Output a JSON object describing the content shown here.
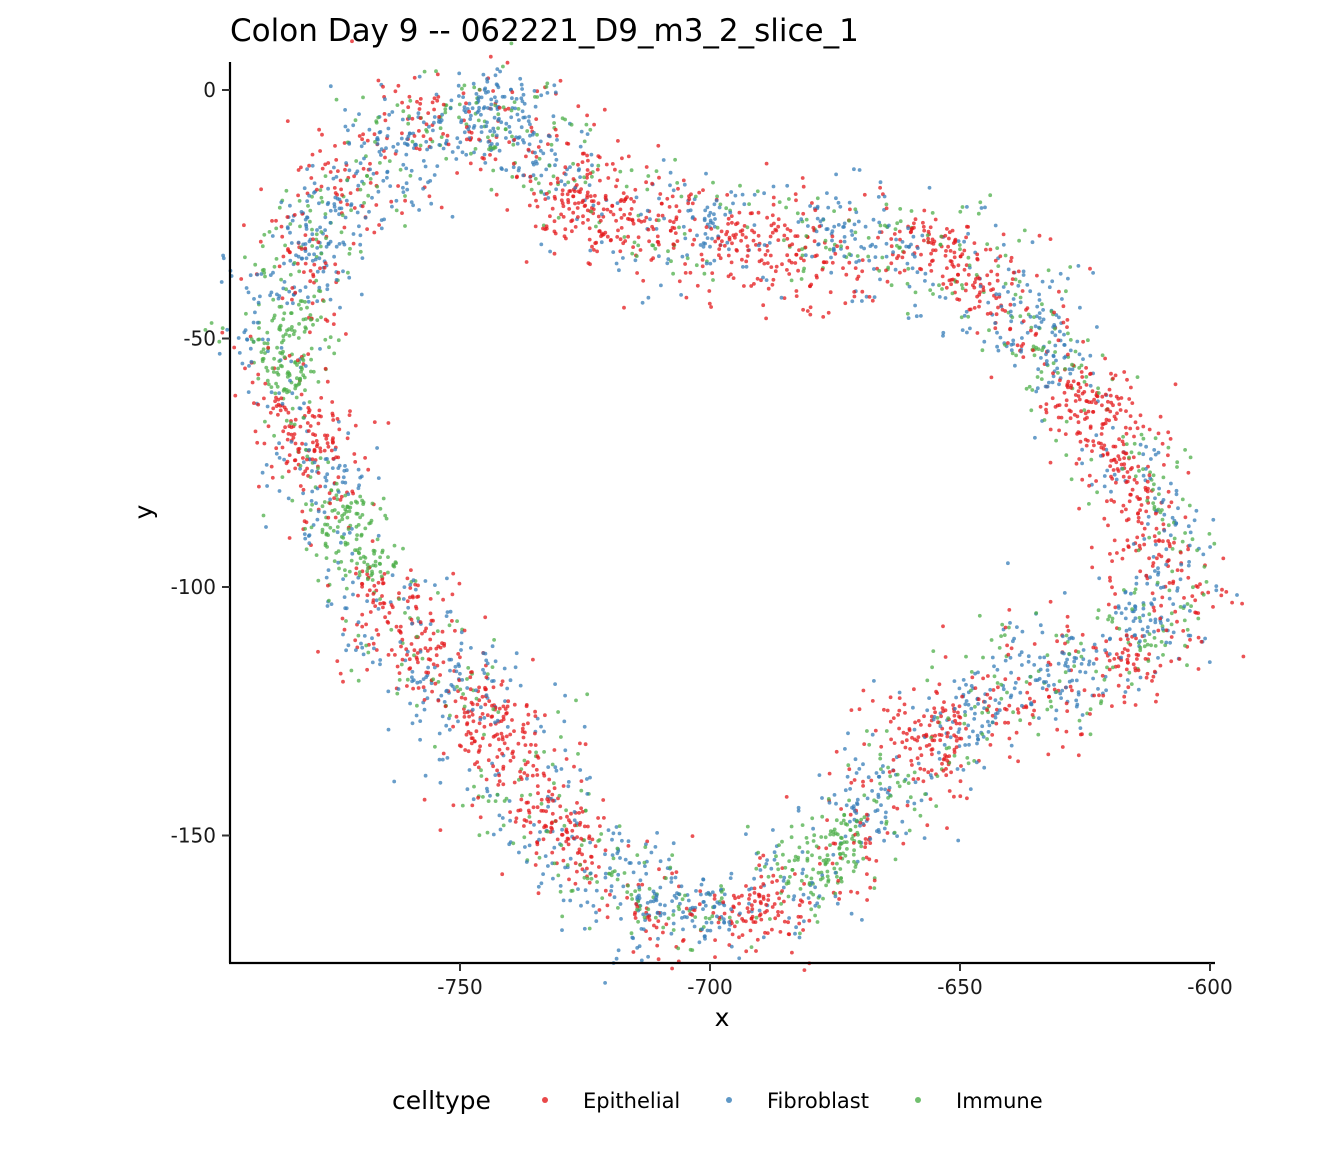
{
  "chart_data": {
    "type": "scatter",
    "title": "Colon Day 9 -- 062221_D9_m3_2_slice_1",
    "xlabel": "x",
    "ylabel": "y",
    "xlim": [
      -795,
      -600
    ],
    "ylim": [
      -175,
      5
    ],
    "xticks": [
      -750,
      -700,
      -650,
      -600
    ],
    "yticks": [
      0,
      -50,
      -100,
      -150
    ],
    "xtick_labels": [
      "-750",
      "-700",
      "-650",
      "-600"
    ],
    "ytick_labels": [
      "0",
      "-50",
      "-100",
      "-150"
    ],
    "grid": false,
    "legend_position": "bottom",
    "legend_title": "celltype",
    "series": [
      {
        "name": "Epithelial",
        "color": "#E41A1C"
      },
      {
        "name": "Fibroblast",
        "color": "#377EB8"
      },
      {
        "name": "Immune",
        "color": "#4DAF4A"
      }
    ],
    "outline": [
      [
        -750,
        -3
      ],
      [
        -742,
        -4
      ],
      [
        -736,
        -8
      ],
      [
        -732,
        -15
      ],
      [
        -730,
        -22
      ],
      [
        -725,
        -26
      ],
      [
        -715,
        -25
      ],
      [
        -705,
        -28
      ],
      [
        -695,
        -29
      ],
      [
        -685,
        -30
      ],
      [
        -675,
        -31
      ],
      [
        -665,
        -31
      ],
      [
        -655,
        -31
      ],
      [
        -648,
        -35
      ],
      [
        -640,
        -43
      ],
      [
        -632,
        -53
      ],
      [
        -625,
        -62
      ],
      [
        -618,
        -72
      ],
      [
        -612,
        -82
      ],
      [
        -609,
        -90
      ],
      [
        -608,
        -97
      ],
      [
        -609,
        -106
      ],
      [
        -612,
        -112
      ],
      [
        -620,
        -115
      ],
      [
        -632,
        -118
      ],
      [
        -643,
        -121
      ],
      [
        -650,
        -125
      ],
      [
        -656,
        -132
      ],
      [
        -662,
        -138
      ],
      [
        -668,
        -145
      ],
      [
        -674,
        -152
      ],
      [
        -680,
        -160
      ],
      [
        -688,
        -164
      ],
      [
        -698,
        -165
      ],
      [
        -708,
        -166
      ],
      [
        -716,
        -163
      ],
      [
        -720,
        -158
      ],
      [
        -725,
        -152
      ],
      [
        -732,
        -146
      ],
      [
        -737,
        -140
      ],
      [
        -742,
        -132
      ],
      [
        -746,
        -124
      ],
      [
        -752,
        -118
      ],
      [
        -760,
        -112
      ],
      [
        -766,
        -104
      ],
      [
        -770,
        -96
      ],
      [
        -774,
        -86
      ],
      [
        -778,
        -76
      ],
      [
        -782,
        -66
      ],
      [
        -786,
        -56
      ],
      [
        -786,
        -46
      ],
      [
        -783,
        -38
      ],
      [
        -780,
        -30
      ],
      [
        -777,
        -22
      ],
      [
        -771,
        -16
      ],
      [
        -765,
        -12
      ],
      [
        -758,
        -9
      ],
      [
        -754,
        -6
      ],
      [
        -750,
        -3
      ]
    ],
    "clusters": [
      {
        "x": -686,
        "y": -41,
        "series": "Epithelial"
      },
      {
        "x": -690,
        "y": -33,
        "series": "Epithelial"
      },
      {
        "x": -725,
        "y": -28,
        "series": "Epithelial"
      },
      {
        "x": -618,
        "y": -90,
        "series": "Epithelial"
      },
      {
        "x": -622,
        "y": -64,
        "series": "Epithelial"
      },
      {
        "x": -772,
        "y": -66,
        "series": "Epithelial"
      },
      {
        "x": -743,
        "y": -128,
        "series": "Epithelial"
      },
      {
        "x": -658,
        "y": -128,
        "series": "Epithelial"
      },
      {
        "x": -678,
        "y": -153,
        "series": "Immune"
      },
      {
        "x": -769,
        "y": -90,
        "series": "Immune"
      },
      {
        "x": -783,
        "y": -52,
        "series": "Immune"
      }
    ],
    "n_points": 5200,
    "seed": 7
  }
}
